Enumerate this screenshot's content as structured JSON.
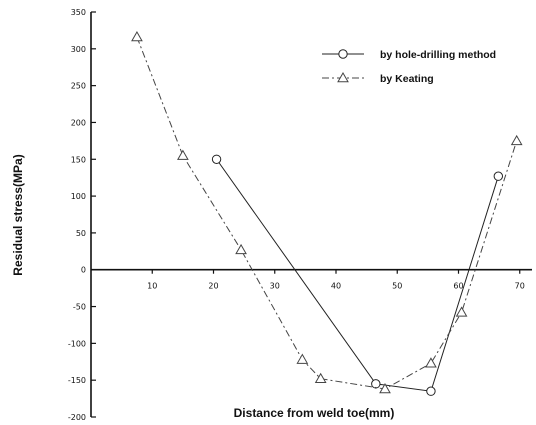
{
  "chart_data": {
    "type": "line",
    "xlabel": "Distance from weld toe(mm)",
    "ylabel": "Residual stress(MPa)",
    "xlim": [
      0,
      72
    ],
    "ylim": [
      -200,
      350
    ],
    "xticks": [
      10,
      20,
      30,
      40,
      50,
      60,
      70
    ],
    "yticks": [
      350,
      300,
      250,
      200,
      150,
      100,
      50,
      0,
      -50,
      -100,
      -150,
      -200
    ],
    "grid": false,
    "legend_position": "top-right",
    "series": [
      {
        "name": "by hole-drilling method",
        "marker": "circle",
        "line_style": "solid",
        "color": "#222222",
        "points": [
          [
            20.5,
            150
          ],
          [
            46.5,
            -155
          ],
          [
            55.5,
            -165
          ],
          [
            66.5,
            127
          ]
        ]
      },
      {
        "name": "by Keating",
        "marker": "triangle",
        "line_style": "dash-dot",
        "color": "#444444",
        "points": [
          [
            7.5,
            316
          ],
          [
            15,
            155
          ],
          [
            24.5,
            27
          ],
          [
            34.5,
            -122
          ],
          [
            37.5,
            -148
          ],
          [
            48,
            -162
          ],
          [
            55.5,
            -127
          ],
          [
            60.5,
            -58
          ],
          [
            69.5,
            175
          ]
        ]
      }
    ]
  }
}
